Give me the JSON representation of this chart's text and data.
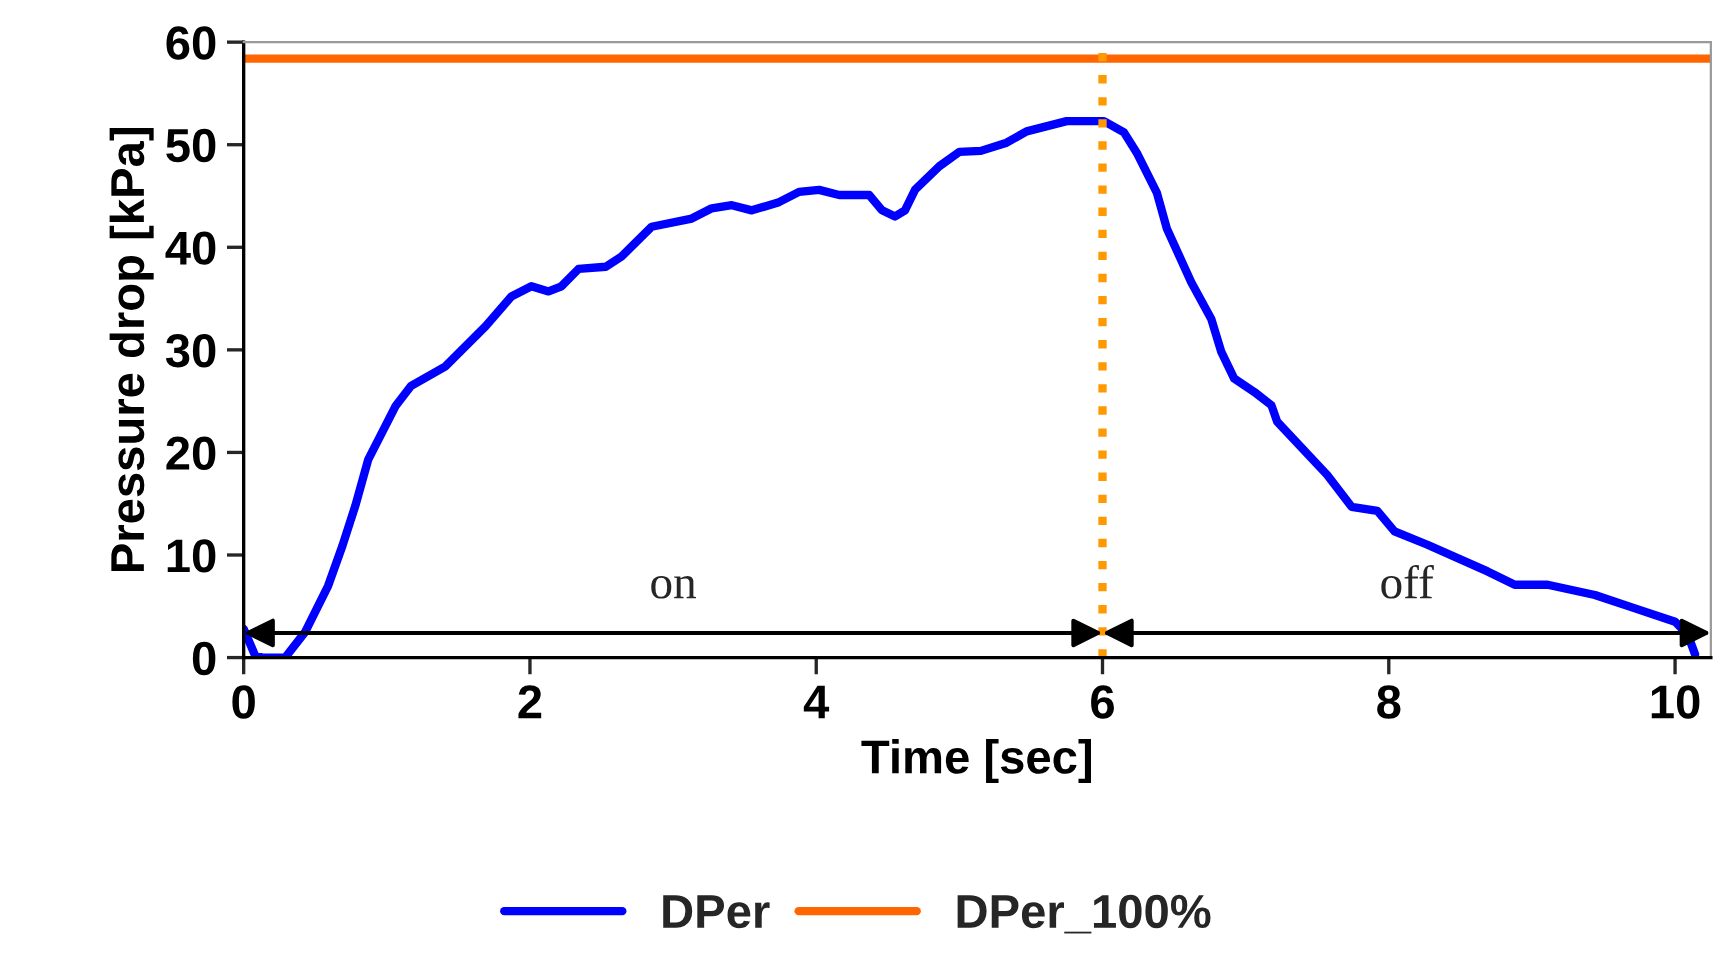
{
  "chart_data": {
    "type": "line",
    "xlabel": "Time [sec]",
    "ylabel": "Pressure drop [kPa]",
    "xlim": [
      0,
      10.25
    ],
    "xticks": [
      0,
      2,
      4,
      6,
      8,
      10
    ],
    "ylim": [
      0,
      60
    ],
    "yticks": [
      0,
      10,
      20,
      30,
      40,
      50,
      60
    ],
    "grid": false,
    "legend": "bottom",
    "marker": "none",
    "line_style": "solid",
    "series": [
      {
        "name": "DPer",
        "color": "#0000ff",
        "x": [
          0,
          0.08,
          0.13,
          0.29,
          0.43,
          0.59,
          0.69,
          0.78,
          0.87,
          1.06,
          1.17,
          1.41,
          1.69,
          1.87,
          2.01,
          2.13,
          2.22,
          2.34,
          2.53,
          2.64,
          2.85,
          3.13,
          3.27,
          3.41,
          3.55,
          3.74,
          3.88,
          4.02,
          4.16,
          4.37,
          4.46,
          4.55,
          4.62,
          4.69,
          4.86,
          5.0,
          5.15,
          5.33,
          5.47,
          5.75,
          6.01,
          6.15,
          6.24,
          6.38,
          6.45,
          6.62,
          6.76,
          6.83,
          6.92,
          7.06,
          7.18,
          7.22,
          7.57,
          7.74,
          7.92,
          8.04,
          8.27,
          8.69,
          8.88,
          9.11,
          9.44,
          9.72,
          10.0,
          10.09,
          10.14
        ],
        "values": [
          2.8,
          0.2,
          0,
          0,
          2.5,
          7.0,
          10.9,
          14.8,
          19.3,
          24.5,
          26.5,
          28.4,
          32.3,
          35.2,
          36.2,
          35.7,
          36.2,
          37.9,
          38.1,
          39.1,
          42.0,
          42.8,
          43.8,
          44.1,
          43.6,
          44.4,
          45.4,
          45.6,
          45.1,
          45.1,
          43.6,
          43.0,
          43.6,
          45.6,
          47.9,
          49.3,
          49.4,
          50.2,
          51.3,
          52.3,
          52.3,
          51.2,
          49.2,
          45.3,
          41.8,
          36.6,
          33.0,
          29.8,
          27.2,
          25.9,
          24.6,
          23.0,
          17.8,
          14.7,
          14.3,
          12.3,
          11.0,
          8.4,
          7.1,
          7.1,
          6.1,
          4.8,
          3.5,
          2.2,
          0.3
        ]
      },
      {
        "name": "DPer_100%",
        "color": "#ff6600",
        "x": [
          0,
          10.25
        ],
        "values": [
          58.4,
          58.4
        ]
      }
    ],
    "ref_lines": [
      {
        "axis": "x",
        "value": 6,
        "color": "#ff9900",
        "line_style": "dotted"
      }
    ],
    "annotations": [
      "on",
      "off"
    ]
  }
}
